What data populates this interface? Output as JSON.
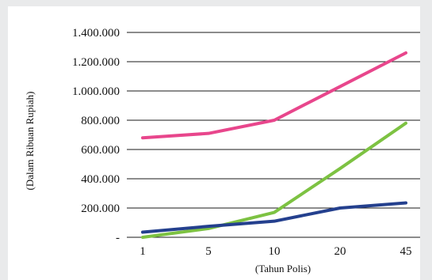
{
  "chart_data": {
    "type": "line",
    "title": "",
    "xlabel": "(Tahun Polis)",
    "ylabel": "(Dalam Ribuan Rupiah)",
    "categories": [
      "1",
      "5",
      "10",
      "20",
      "45"
    ],
    "y_tick_labels": [
      "-",
      "200.000",
      "400.000",
      "600.000",
      "800.000",
      "1.000.000",
      "1.200.000",
      "1.400.000"
    ],
    "y_ticks": [
      0,
      200000,
      400000,
      600000,
      800000,
      1000000,
      1200000,
      1400000
    ],
    "ylim": [
      0,
      1400000
    ],
    "grid": true,
    "legend": "none",
    "series": [
      {
        "color": "#e8468c",
        "values": [
          680000,
          710000,
          800000,
          1030000,
          1260000
        ]
      },
      {
        "color": "#7dc242",
        "values": [
          0,
          60000,
          170000,
          470000,
          780000
        ]
      },
      {
        "color": "#24408e",
        "values": [
          35000,
          75000,
          110000,
          200000,
          235000
        ]
      }
    ]
  }
}
